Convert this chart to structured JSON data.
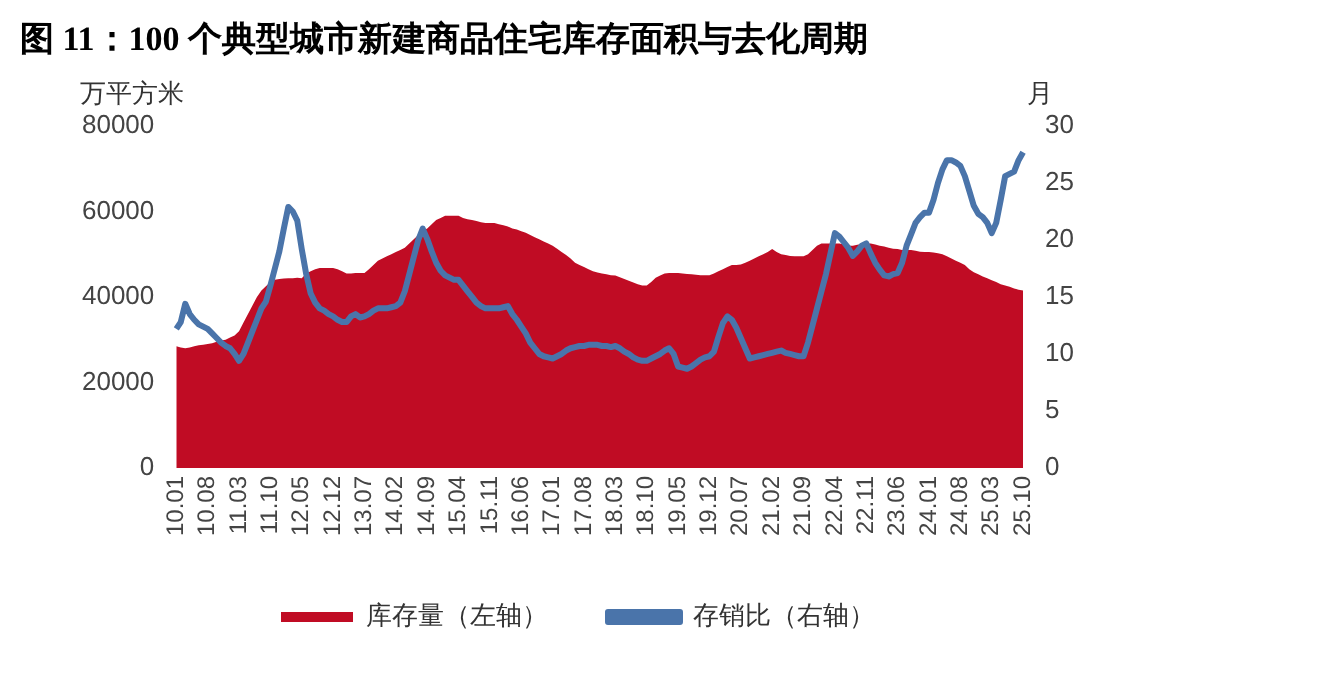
{
  "chart_data": {
    "type": "line",
    "title": "图 11：100 个典型城市新建商品住宅库存面积与去化周期",
    "ylabel": "万平方米",
    "y2label": "月",
    "categories": [
      "10.01",
      null,
      null,
      null,
      null,
      null,
      null,
      "10.08",
      null,
      null,
      null,
      null,
      null,
      null,
      "11.03",
      null,
      null,
      null,
      null,
      null,
      null,
      "11.10",
      null,
      null,
      null,
      null,
      null,
      null,
      "12.05",
      null,
      null,
      null,
      null,
      null,
      null,
      "12.12",
      null,
      null,
      null,
      null,
      null,
      null,
      "13.07",
      null,
      null,
      null,
      null,
      null,
      null,
      "14.02",
      null,
      null,
      null,
      null,
      null,
      null,
      "14.09",
      null,
      null,
      null,
      null,
      null,
      null,
      "15.04",
      null,
      null,
      null,
      null,
      null,
      null,
      "15.11",
      null,
      null,
      null,
      null,
      null,
      null,
      "16.06",
      null,
      null,
      null,
      null,
      null,
      null,
      "17.01",
      null,
      null,
      null,
      null,
      null,
      null,
      "17.08",
      null,
      null,
      null,
      null,
      null,
      null,
      "18.03",
      null,
      null,
      null,
      null,
      null,
      null,
      "18.10",
      null,
      null,
      null,
      null,
      null,
      null,
      "19.05",
      null,
      null,
      null,
      null,
      null,
      null,
      "19.12",
      null,
      null,
      null,
      null,
      null,
      null,
      "20.07",
      null,
      null,
      null,
      null,
      null,
      null,
      "21.02",
      null,
      null,
      null,
      null,
      null,
      null,
      "21.09",
      null,
      null,
      null,
      null,
      null,
      null,
      "22.04",
      null,
      null,
      null,
      null,
      null,
      null,
      "22.11",
      null,
      null,
      null,
      null,
      null,
      null,
      "23.06",
      null,
      null,
      null,
      null,
      null,
      null,
      "24.01",
      null,
      null,
      null,
      null,
      null,
      null,
      "24.08",
      null,
      null,
      null,
      null,
      null,
      null,
      "25.03",
      null,
      null,
      null,
      null,
      null,
      null,
      "25.10"
    ],
    "series": [
      {
        "name": "库存量（左轴）",
        "type": "area",
        "color": "#c00c24",
        "values": [
          28500,
          28200,
          28000,
          28200,
          28500,
          28700,
          28800,
          29000,
          29200,
          29500,
          29800,
          30000,
          30500,
          31000,
          32000,
          34000,
          36000,
          38000,
          40000,
          41500,
          42500,
          43500,
          44000,
          44200,
          44300,
          44400,
          44400,
          44500,
          44400,
          45500,
          46000,
          46500,
          46800,
          46800,
          46800,
          46800,
          46500,
          46000,
          45500,
          45500,
          45600,
          45600,
          45600,
          46500,
          47500,
          48500,
          49000,
          49500,
          50000,
          50500,
          51000,
          51500,
          52500,
          53500,
          54500,
          55500,
          56000,
          57000,
          58000,
          58500,
          59000,
          59000,
          59000,
          59000,
          58500,
          58200,
          58000,
          57800,
          57500,
          57300,
          57300,
          57300,
          57000,
          56800,
          56500,
          56000,
          55800,
          55400,
          55000,
          54500,
          54000,
          53500,
          53000,
          52500,
          52000,
          51300,
          50500,
          49800,
          49000,
          48000,
          47500,
          47000,
          46500,
          46000,
          45700,
          45500,
          45300,
          45100,
          45000,
          44600,
          44200,
          43800,
          43400,
          43000,
          42700,
          42700,
          43500,
          44500,
          45000,
          45500,
          45600,
          45600,
          45600,
          45500,
          45400,
          45300,
          45200,
          45100,
          45100,
          45100,
          45500,
          46000,
          46500,
          47000,
          47500,
          47500,
          47600,
          48000,
          48500,
          49000,
          49500,
          50000,
          50500,
          51200,
          50500,
          50000,
          49800,
          49600,
          49500,
          49500,
          49500,
          50000,
          51000,
          52000,
          52500,
          52500,
          52500,
          52500,
          52500,
          52300,
          52000,
          52000,
          52200,
          52400,
          52500,
          52500,
          52300,
          52000,
          51800,
          51500,
          51300,
          51200,
          51000,
          51000,
          51000,
          50800,
          50600,
          50500,
          50500,
          50400,
          50200,
          50000,
          49500,
          49000,
          48500,
          48000,
          47500,
          46500,
          45800,
          45300,
          44800,
          44400,
          43900,
          43500,
          43000,
          42700,
          42400,
          42000,
          41700,
          41500
        ]
      },
      {
        "name": "存销比（右轴）",
        "type": "line",
        "axis": "y2",
        "color": "#4a74aa",
        "values": [
          12.2,
          12.8,
          14.4,
          13.5,
          13.0,
          12.6,
          12.4,
          12.2,
          11.8,
          11.4,
          11.0,
          10.7,
          10.5,
          10.0,
          9.4,
          10.0,
          11.0,
          12.0,
          13.0,
          14.0,
          14.6,
          16.0,
          17.5,
          19.0,
          21.0,
          22.9,
          22.5,
          21.7,
          19.2,
          17.0,
          15.3,
          14.5,
          14.0,
          13.8,
          13.5,
          13.3,
          13.0,
          12.8,
          12.8,
          13.3,
          13.5,
          13.2,
          13.3,
          13.5,
          13.8,
          14.0,
          14.0,
          14.0,
          14.1,
          14.2,
          14.5,
          15.5,
          17.0,
          18.5,
          20.0,
          21.0,
          20.1,
          19.0,
          18.0,
          17.3,
          16.9,
          16.7,
          16.5,
          16.5,
          16.0,
          15.5,
          15.0,
          14.5,
          14.2,
          14.0,
          14.0,
          14.0,
          14.0,
          14.1,
          14.2,
          13.5,
          13.0,
          12.4,
          11.8,
          11.0,
          10.5,
          10.0,
          9.8,
          9.7,
          9.6,
          9.8,
          10.0,
          10.3,
          10.5,
          10.6,
          10.7,
          10.7,
          10.8,
          10.8,
          10.8,
          10.7,
          10.7,
          10.6,
          10.7,
          10.5,
          10.2,
          10.0,
          9.7,
          9.5,
          9.4,
          9.4,
          9.6,
          9.8,
          10.0,
          10.3,
          10.5,
          10.0,
          8.9,
          8.8,
          8.7,
          8.9,
          9.2,
          9.5,
          9.7,
          9.8,
          10.2,
          11.5,
          12.7,
          13.3,
          13.0,
          12.3,
          11.4,
          10.5,
          9.6,
          9.7,
          9.8,
          9.9,
          10.0,
          10.1,
          10.2,
          10.3,
          10.1,
          10.0,
          9.9,
          9.8,
          9.8,
          11.0,
          12.5,
          14.0,
          15.5,
          17.0,
          18.8,
          20.6,
          20.3,
          19.8,
          19.3,
          18.6,
          19.0,
          19.5,
          19.7,
          18.8,
          18.0,
          17.4,
          16.9,
          16.8,
          17.0,
          17.1,
          18.0,
          19.5,
          20.5,
          21.5,
          22.0,
          22.4,
          22.4,
          23.5,
          25.0,
          26.2,
          27.0,
          27.0,
          26.8,
          26.5,
          25.6,
          24.3,
          23.0,
          22.3,
          22.0,
          21.5,
          20.6,
          21.5,
          23.5,
          25.6,
          25.8,
          26.0,
          27.0,
          27.7
        ]
      }
    ],
    "ylim": [
      0,
      80000
    ],
    "yticks": [
      0,
      20000,
      40000,
      60000,
      80000
    ],
    "y2lim": [
      0,
      30
    ],
    "y2ticks": [
      0,
      5,
      10,
      15,
      20,
      25,
      30
    ],
    "grid": false,
    "legend": "bottom",
    "marker": "none",
    "line_style": "solid"
  }
}
